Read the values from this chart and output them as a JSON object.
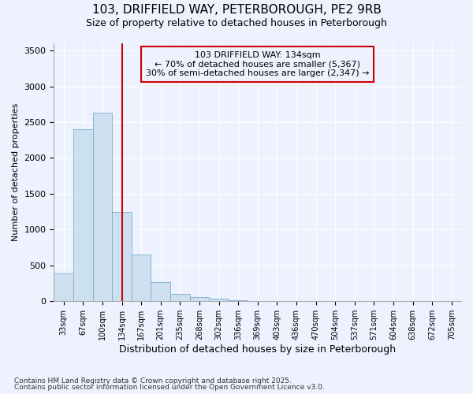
{
  "title_line1": "103, DRIFFIELD WAY, PETERBOROUGH, PE2 9RB",
  "title_line2": "Size of property relative to detached houses in Peterborough",
  "xlabel": "Distribution of detached houses by size in Peterborough",
  "ylabel": "Number of detached properties",
  "categories": [
    "33sqm",
    "67sqm",
    "100sqm",
    "134sqm",
    "167sqm",
    "201sqm",
    "235sqm",
    "268sqm",
    "302sqm",
    "336sqm",
    "369sqm",
    "403sqm",
    "436sqm",
    "470sqm",
    "504sqm",
    "537sqm",
    "571sqm",
    "604sqm",
    "638sqm",
    "672sqm",
    "705sqm"
  ],
  "values": [
    390,
    2400,
    2630,
    1250,
    650,
    270,
    100,
    60,
    40,
    10,
    5,
    3,
    0,
    0,
    0,
    0,
    0,
    0,
    0,
    0,
    0
  ],
  "bar_color": "#cce0f0",
  "bar_edge_color": "#7aaed0",
  "vline_x_index": 3,
  "vline_color": "#cc0000",
  "annotation_line1": "103 DRIFFIELD WAY: 134sqm",
  "annotation_line2": "← 70% of detached houses are smaller (5,367)",
  "annotation_line3": "30% of semi-detached houses are larger (2,347) →",
  "annotation_box_color": "#cc0000",
  "ylim": [
    0,
    3600
  ],
  "yticks": [
    0,
    500,
    1000,
    1500,
    2000,
    2500,
    3000,
    3500
  ],
  "footer_line1": "Contains HM Land Registry data © Crown copyright and database right 2025.",
  "footer_line2": "Contains public sector information licensed under the Open Government Licence v3.0.",
  "bg_color": "#eef2ff",
  "grid_color": "#ffffff"
}
